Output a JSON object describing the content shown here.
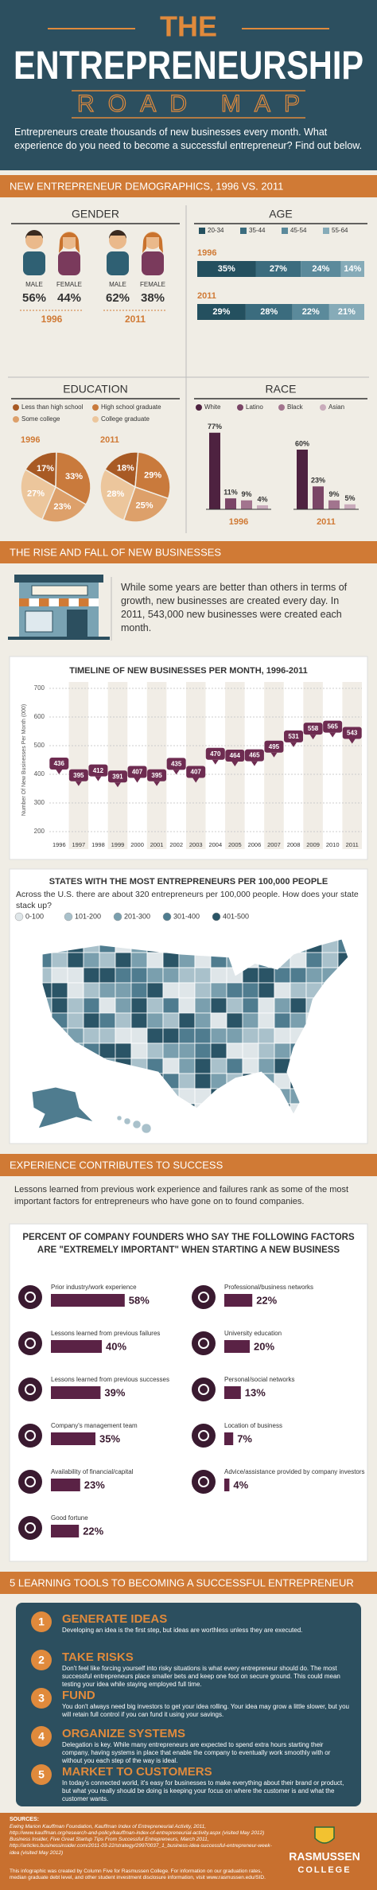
{
  "header": {
    "title_top": "THE",
    "title": "ENTREPRENEURSHIP",
    "title_bottom": "ROAD MAP",
    "intro": "Entrepreneurs create thousands of new businesses every month. What experience do you need to become a successful entrepreneur? Find out below."
  },
  "sections": [
    "NEW ENTREPRENEUR DEMOGRAPHICS, 1996 VS. 2011",
    "THE RISE AND FALL OF NEW BUSINESSES",
    "EXPERIENCE CONTRIBUTES TO SUCCESS",
    "5 LEARNING TOOLS TO BECOMING A SUCCESSFUL ENTREPRENEUR"
  ],
  "rise_text": "While some years are better than others in terms of growth, new businesses are created every day. In 2011, 543,000 new businesses were created each month.",
  "map": {
    "title": "STATES WITH THE MOST ENTREPRENEURS PER 100,000 PEOPLE",
    "subtitle": "Across the U.S. there are about 320 entrepreneurs per 100,000 people. How does your state stack up?",
    "legend": [
      "0-100",
      "101-200",
      "201-300",
      "301-400",
      "401-500"
    ],
    "colors": [
      "#dfe6e9",
      "#a9c1cb",
      "#7a9fae",
      "#4f7c8f",
      "#2a5466"
    ]
  },
  "experience_text": "Lessons learned from previous work experience and failures rank as some of the most important factors for entrepreneurs who have gone on to found companies.",
  "tools": [
    {
      "number": "1",
      "title": "GENERATE IDEAS",
      "text": "Developing an idea is the first step, but ideas are worthless unless they are executed."
    },
    {
      "number": "2",
      "title": "TAKE RISKS",
      "text": "Don't feel like forcing yourself into risky situations is what every entrepreneur should do. The most successful entrepreneurs place smaller bets and keep one foot on secure ground. This could mean testing your idea while staying employed full time."
    },
    {
      "number": "3",
      "title": "FUND",
      "text": "You don't always need big investors to get your idea rolling. Your idea may grow a little slower, but you will retain full control if you can fund it using your savings."
    },
    {
      "number": "4",
      "title": "ORGANIZE SYSTEMS",
      "text": "Delegation is key. While many entrepreneurs are expected to spend extra hours starting their company, having systems in place that enable the company to eventually work smoothly with or without you each step of the way is ideal."
    },
    {
      "number": "5",
      "title": "MARKET TO CUSTOMERS",
      "text": "In today's connected world, it's easy for businesses to make everything about their brand or product, but what you really should be doing is keeping your focus on where the customer is and what the customer wants."
    }
  ],
  "footer": {
    "sources_label": "SOURCES:",
    "sources": "Ewing Marion Kauffman Foundation, Kauffman Index of Entrepreneurial Activity, 2011, http://www.kauffman.org/research-and-policy/kauffman-index-of-entrepreneurial-activity.aspx (visited May 2012) Business Insider, Five Great Startup Tips From Successful Entrepreneurs, March 2011, http://articles.businessinsider.com/2011-03-22/strategy/29970037_1_business-idea-successful-entrepreneur-week-idea (visited May 2012)",
    "credit": "This infographic was created by Column Five for Rasmussen College. For information on our graduation rates, median graduate debt level, and other student investment disclosure information, visit www.rasmussen.edu/SID.",
    "logo": "RASMUSSEN",
    "logo_sub": "COLLEGE"
  },
  "chart_data": [
    {
      "type": "pictograph",
      "title": "GENDER",
      "categories": [
        "1996",
        "2011"
      ],
      "series": [
        {
          "name": "MALE",
          "color": "#2f6073",
          "values": [
            56,
            62
          ],
          "value_labels": [
            "56%",
            "62%"
          ]
        },
        {
          "name": "FEMALE",
          "color": "#7a3a5c",
          "values": [
            44,
            38
          ],
          "value_labels": [
            "44%",
            "38%"
          ]
        }
      ]
    },
    {
      "type": "bar",
      "stacked": true,
      "orientation": "horizontal",
      "title": "AGE",
      "categories": [
        "1996",
        "2011"
      ],
      "series": [
        {
          "name": "20-34",
          "color": "#24505f",
          "values": [
            35,
            29
          ],
          "value_labels": [
            "35%",
            "29%"
          ]
        },
        {
          "name": "35-44",
          "color": "#3b6c7e",
          "values": [
            27,
            28
          ],
          "value_labels": [
            "27%",
            "28%"
          ]
        },
        {
          "name": "45-54",
          "color": "#5b8a9b",
          "values": [
            24,
            22
          ],
          "value_labels": [
            "24%",
            "22%"
          ]
        },
        {
          "name": "55-64",
          "color": "#86abb8",
          "values": [
            14,
            21
          ],
          "value_labels": [
            "14%",
            "21%"
          ]
        }
      ]
    },
    {
      "type": "pie",
      "title": "EDUCATION",
      "categories": [
        "Less than high school",
        "High school graduate",
        "Some college",
        "College graduate"
      ],
      "colors": [
        "#a85a24",
        "#c97a3c",
        "#dda06a",
        "#ecc69c"
      ],
      "series": [
        {
          "name": "1996",
          "values": [
            17,
            33,
            23,
            27
          ],
          "value_labels": [
            "17%",
            "33%",
            "23%",
            "27%"
          ]
        },
        {
          "name": "2011",
          "values": [
            18,
            29,
            25,
            28
          ],
          "value_labels": [
            "18%",
            "29%",
            "25%",
            "28%"
          ]
        }
      ]
    },
    {
      "type": "bar",
      "title": "RACE",
      "categories": [
        "1996",
        "2011"
      ],
      "series": [
        {
          "name": "White",
          "color": "#4e2240",
          "values": [
            77,
            60
          ],
          "value_labels": [
            "77%",
            "60%"
          ]
        },
        {
          "name": "Latino",
          "color": "#7a4566",
          "values": [
            11,
            23
          ],
          "value_labels": [
            "11%",
            "23%"
          ]
        },
        {
          "name": "Black",
          "color": "#a2748e",
          "values": [
            9,
            9
          ],
          "value_labels": [
            "9%",
            "9%"
          ]
        },
        {
          "name": "Asian",
          "color": "#c9abbb",
          "values": [
            4,
            5
          ],
          "value_labels": [
            "4%",
            "5%"
          ]
        }
      ]
    },
    {
      "type": "scatter",
      "title": "TIMELINE OF NEW BUSINESSES PER MONTH, 1996-2011",
      "y_label": "Number Of New Businesses Per Month (000)",
      "categories": [
        "1996",
        "1997",
        "1998",
        "1999",
        "2000",
        "2001",
        "2002",
        "2003",
        "2004",
        "2005",
        "2006",
        "2007",
        "2008",
        "2009",
        "2010",
        "2011"
      ],
      "values": [
        436,
        395,
        412,
        391,
        407,
        395,
        435,
        407,
        470,
        464,
        465,
        495,
        531,
        558,
        565,
        543
      ],
      "color": "#6e2c51",
      "ylim": [
        200,
        700
      ],
      "yticks": [
        200,
        300,
        400,
        500,
        600,
        700
      ],
      "grid": true
    },
    {
      "type": "bar",
      "orientation": "horizontal",
      "title": "PERCENT OF COMPANY FOUNDERS WHO SAY THE FOLLOWING FACTORS ARE \"EXTREMELY IMPORTANT\" WHEN STARTING A NEW BUSINESS",
      "categories": [
        "Prior industry/work experience",
        "Lessons learned from previous failures",
        "Lessons learned from previous successes",
        "Company's management team",
        "Availability of financial/capital",
        "Good fortune",
        "Professional/business networks",
        "University education",
        "Personal/social networks",
        "Location of business",
        "Advice/assistance provided by company investors"
      ],
      "values": [
        58,
        40,
        39,
        35,
        23,
        22,
        22,
        20,
        13,
        7,
        4
      ],
      "value_labels": [
        "58%",
        "40%",
        "39%",
        "35%",
        "23%",
        "22%",
        "22%",
        "20%",
        "13%",
        "7%",
        "4%"
      ],
      "color": "#5a2245"
    }
  ]
}
